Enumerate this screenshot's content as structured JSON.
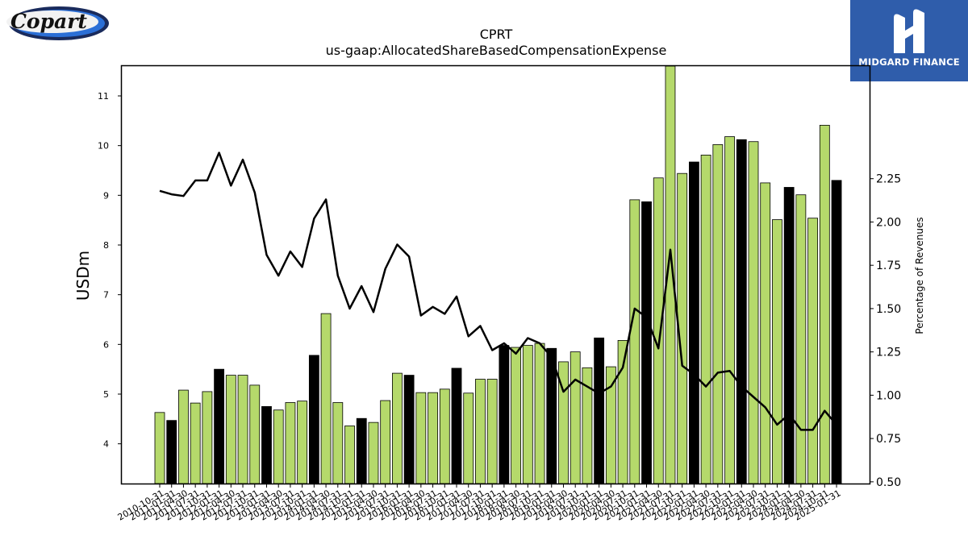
{
  "logos": {
    "left_brand": "Copart",
    "right_brand": "MIDGARD FINANCE"
  },
  "colors": {
    "bar_default": "#b5d96b",
    "bar_highlight": "#000000",
    "line": "#000000"
  },
  "chart_data": {
    "type": "bar",
    "title": "CPRT",
    "subtitle": "us-gaap:AllocatedShareBasedCompensationExpense",
    "ylabel": "USDm",
    "ylabel_right": "Percentage of Revenues",
    "ylim": [
      3.2,
      11.6
    ],
    "ylim_right": [
      0.49,
      2.9
    ],
    "yticks": [
      4,
      5,
      6,
      7,
      8,
      9,
      10,
      11
    ],
    "yticks_right": [
      "0.50",
      "0.75",
      "1.00",
      "1.25",
      "1.50",
      "1.75",
      "2.00",
      "2.25"
    ],
    "grid": false,
    "categories": [
      "2010-10-31",
      "2011-01-31",
      "2011-04-30",
      "2011-07-31",
      "2011-10-31",
      "2012-01-31",
      "2012-04-30",
      "2012-07-31",
      "2012-10-31",
      "2013-01-31",
      "2013-04-30",
      "2013-07-31",
      "2013-10-31",
      "2014-01-31",
      "2014-04-30",
      "2014-07-31",
      "2014-10-31",
      "2015-01-31",
      "2015-04-30",
      "2015-07-31",
      "2015-10-31",
      "2016-01-31",
      "2016-04-30",
      "2016-07-31",
      "2016-10-31",
      "2017-01-31",
      "2017-04-30",
      "2017-07-31",
      "2017-10-31",
      "2018-01-31",
      "2018-04-30",
      "2018-07-31",
      "2018-10-31",
      "2019-01-31",
      "2019-04-30",
      "2019-07-31",
      "2019-10-31",
      "2020-01-31",
      "2020-04-30",
      "2020-07-31",
      "2020-10-31",
      "2021-01-31",
      "2021-04-30",
      "2021-07-31",
      "2021-10-31",
      "2022-01-31",
      "2022-04-30",
      "2022-07-31",
      "2022-10-31",
      "2023-01-31",
      "2023-04-30",
      "2023-07-31",
      "2023-10-31",
      "2024-01-31",
      "2024-04-30",
      "2024-07-31",
      "2024-10-31",
      "2025-01-31"
    ],
    "series": [
      {
        "values": [
          4.63,
          4.47,
          5.08,
          4.82,
          5.05,
          5.5,
          5.38,
          5.38,
          5.18,
          4.75,
          4.68,
          4.83,
          4.86,
          5.78,
          6.62,
          4.83,
          4.36,
          4.51,
          4.43,
          4.87,
          5.42,
          5.38,
          5.03,
          5.03,
          5.1,
          5.52,
          5.02,
          5.3,
          5.3,
          5.98,
          5.94,
          5.98,
          6.02,
          5.92,
          5.65,
          5.85,
          5.53,
          6.13,
          5.55,
          6.08,
          8.91,
          8.87,
          9.35,
          11.6,
          9.44,
          9.67,
          9.81,
          10.02,
          10.18,
          10.12,
          10.08,
          9.25,
          8.51,
          9.16,
          9.01,
          8.54,
          10.41,
          9.3
        ],
        "highlight": [
          false,
          true,
          false,
          false,
          false,
          true,
          false,
          false,
          false,
          true,
          false,
          false,
          false,
          true,
          false,
          false,
          false,
          true,
          false,
          false,
          false,
          true,
          false,
          false,
          false,
          true,
          false,
          false,
          false,
          true,
          false,
          false,
          false,
          true,
          false,
          false,
          false,
          true,
          false,
          false,
          false,
          true,
          false,
          false,
          false,
          true,
          false,
          false,
          false,
          true,
          false,
          false,
          false,
          true,
          false,
          false,
          false,
          true
        ]
      },
      {
        "type": "line",
        "axis": "right",
        "values": [
          2.18,
          2.16,
          2.15,
          2.24,
          2.24,
          2.4,
          2.21,
          2.36,
          2.17,
          1.81,
          1.69,
          1.83,
          1.74,
          2.02,
          2.13,
          1.69,
          1.5,
          1.63,
          1.48,
          1.73,
          1.87,
          1.8,
          1.46,
          1.51,
          1.47,
          1.57,
          1.34,
          1.4,
          1.26,
          1.3,
          1.24,
          1.33,
          1.3,
          1.22,
          1.02,
          1.09,
          1.05,
          1.01,
          1.05,
          1.16,
          1.5,
          1.45,
          1.27,
          1.84,
          1.17,
          1.12,
          1.05,
          1.13,
          1.14,
          1.05,
          0.99,
          0.93,
          0.83,
          0.89,
          0.8,
          0.8,
          0.91,
          0.83
        ]
      }
    ]
  }
}
